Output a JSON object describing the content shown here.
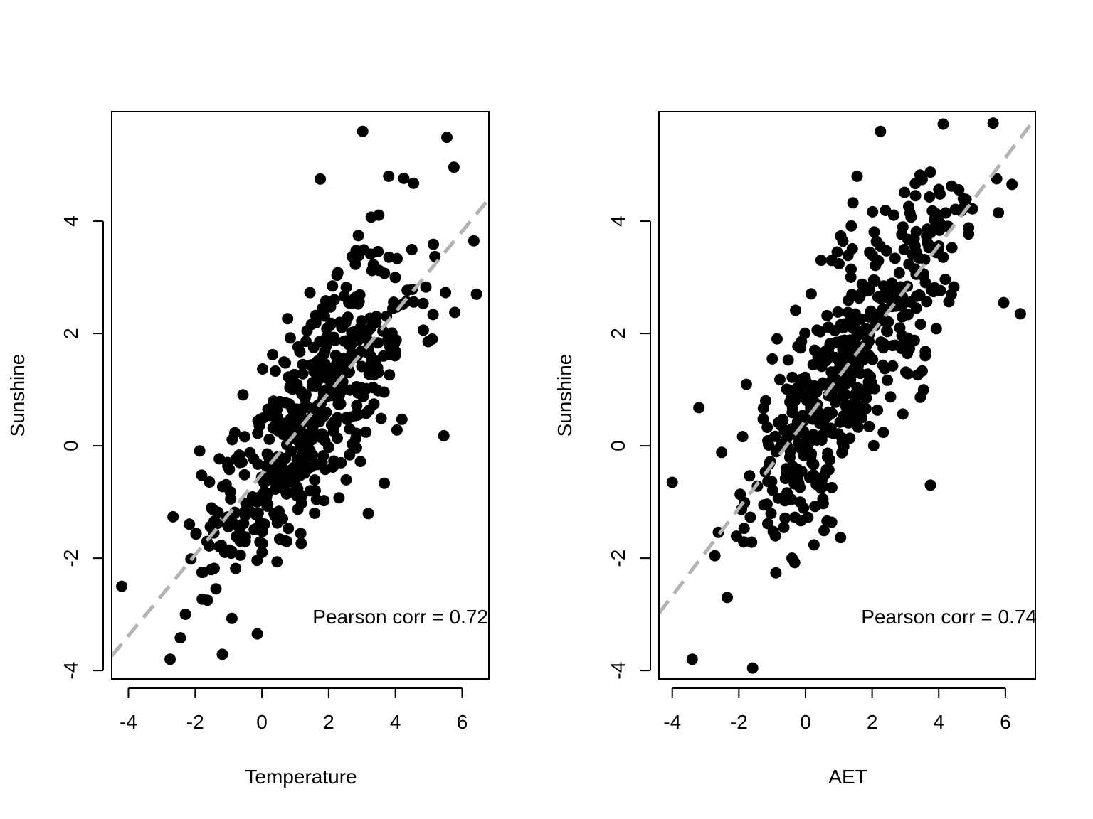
{
  "chart_data": [
    {
      "type": "scatter",
      "xlabel": "Temperature",
      "ylabel": "Sunshine",
      "xlim": [
        -4.5,
        6.8
      ],
      "ylim": [
        -4.15,
        5.95
      ],
      "xticks": [
        -4,
        -2,
        0,
        2,
        4,
        6
      ],
      "yticks": [
        -4,
        -2,
        0,
        2,
        4
      ],
      "annotation": "Pearson corr = 0.72",
      "fit_line": {
        "style": "dashed",
        "color": "#b3b3b3",
        "intercept": -0.5,
        "slope": 0.72
      },
      "point_color": "#000000",
      "n_points": 500,
      "highlighted_points": [
        {
          "x": 3.02,
          "y": 5.6
        },
        {
          "x": 1.75,
          "y": 4.75
        },
        {
          "x": 3.8,
          "y": 4.8
        },
        {
          "x": -2.75,
          "y": -3.8
        },
        {
          "x": -4.2,
          "y": -2.5
        },
        {
          "x": 5.45,
          "y": 0.18
        },
        {
          "x": 6.43,
          "y": 2.7
        },
        {
          "x": 6.35,
          "y": 3.65
        }
      ],
      "seed": 17
    },
    {
      "type": "scatter",
      "xlabel": "AET",
      "ylabel": "Sunshine",
      "xlim": [
        -4.4,
        6.9
      ],
      "ylim": [
        -4.15,
        5.95
      ],
      "xticks": [
        -4,
        -2,
        0,
        2,
        4,
        6
      ],
      "yticks": [
        -4,
        -2,
        0,
        2,
        4
      ],
      "annotation": "Pearson corr = 0.74",
      "fit_line": {
        "style": "dashed",
        "color": "#b3b3b3",
        "intercept": 0.45,
        "slope": 0.78
      },
      "point_color": "#000000",
      "n_points": 500,
      "highlighted_points": [
        {
          "x": 2.25,
          "y": 5.6
        },
        {
          "x": 1.55,
          "y": 4.8
        },
        {
          "x": -4.0,
          "y": -0.65
        },
        {
          "x": -3.4,
          "y": -3.8
        },
        {
          "x": 6.45,
          "y": 2.35
        },
        {
          "x": 5.95,
          "y": 2.55
        },
        {
          "x": 3.75,
          "y": -0.7
        },
        {
          "x": -3.2,
          "y": 0.68
        }
      ],
      "seed": 29
    }
  ]
}
